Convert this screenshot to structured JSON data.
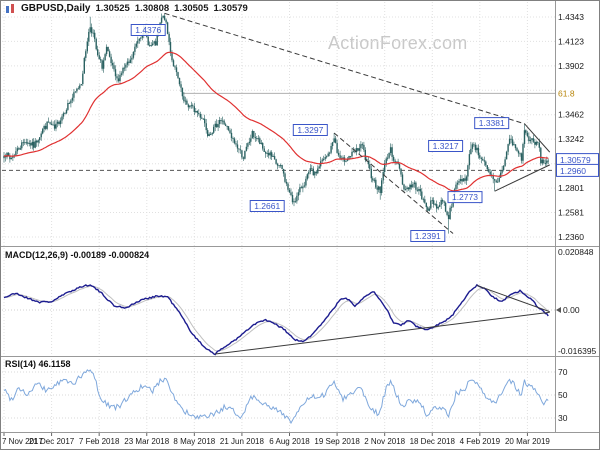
{
  "header": {
    "symbol": "GBPUSD,Daily",
    "open": "1.30525",
    "high": "1.30808",
    "low": "1.30505",
    "close": "1.30579"
  },
  "watermark": "ActionForex.com",
  "indicators": {
    "macd_label": "MACD(12,26,9) -0.00189 -0.000824",
    "rsi_label": "RSI(14) 46.1158"
  },
  "colors": {
    "candle": "#2a6161",
    "ma": "#e03131",
    "macd": "#1c1c8f",
    "macd_signal": "#c0c0c0",
    "rsi": "#7fa8dc",
    "annotation": "#3a55c8",
    "fib_gold": "#b8860b",
    "grid": "#e0e0e0",
    "axis_text": "#1a1a1a",
    "dashed_level": "#555555",
    "trendline": "#3a3a3a",
    "separator": "#999999",
    "border": "#808080"
  },
  "chart_data": [
    {
      "type": "candlestick",
      "title": "GBPUSD Daily",
      "x_unit": "trading_day_index",
      "ylim": [
        1.228,
        1.448
      ],
      "x_ticks": [
        {
          "td": 0,
          "label": "7 Nov 2017"
        },
        {
          "td": 32,
          "label": "21 Dec 2017"
        },
        {
          "td": 64,
          "label": "7 Feb 2018"
        },
        {
          "td": 96,
          "label": "23 Mar 2018"
        },
        {
          "td": 128,
          "label": "8 May 2018"
        },
        {
          "td": 160,
          "label": "21 Jun 2018"
        },
        {
          "td": 192,
          "label": "6 Aug 2018"
        },
        {
          "td": 224,
          "label": "19 Sep 2018"
        },
        {
          "td": 256,
          "label": "2 Nov 2018"
        },
        {
          "td": 288,
          "label": "18 Dec 2018"
        },
        {
          "td": 320,
          "label": "4 Feb 2019"
        },
        {
          "td": 352,
          "label": "20 Mar 2019"
        }
      ],
      "y_ticks": [
        {
          "price": 1.4343,
          "label": "1.4343"
        },
        {
          "price": 1.4123,
          "label": "1.4123"
        },
        {
          "price": 1.3902,
          "label": "1.3902"
        },
        {
          "price": 1.3682,
          "label": ""
        },
        {
          "price": 1.3462,
          "label": "1.3462"
        },
        {
          "price": 1.3242,
          "label": "1.3242"
        },
        {
          "price": 1.3021,
          "label": ""
        },
        {
          "price": 1.2801,
          "label": "1.2801"
        },
        {
          "price": 1.2581,
          "label": "1.2581"
        },
        {
          "price": 1.236,
          "label": "1.2360"
        }
      ],
      "price_path": [
        [
          0,
          1.312
        ],
        [
          4,
          1.306
        ],
        [
          8,
          1.313
        ],
        [
          14,
          1.323
        ],
        [
          20,
          1.318
        ],
        [
          26,
          1.333
        ],
        [
          30,
          1.339
        ],
        [
          34,
          1.333
        ],
        [
          38,
          1.343
        ],
        [
          42,
          1.353
        ],
        [
          48,
          1.366
        ],
        [
          52,
          1.376
        ],
        [
          56,
          1.414
        ],
        [
          58,
          1.426
        ],
        [
          60,
          1.419
        ],
        [
          63,
          1.398
        ],
        [
          66,
          1.39
        ],
        [
          69,
          1.405
        ],
        [
          73,
          1.388
        ],
        [
          76,
          1.377
        ],
        [
          80,
          1.387
        ],
        [
          85,
          1.394
        ],
        [
          90,
          1.414
        ],
        [
          94,
          1.423
        ],
        [
          98,
          1.408
        ],
        [
          102,
          1.41
        ],
        [
          106,
          1.433
        ],
        [
          108,
          1.434
        ],
        [
          110,
          1.419
        ],
        [
          113,
          1.396
        ],
        [
          117,
          1.378
        ],
        [
          121,
          1.357
        ],
        [
          126,
          1.353
        ],
        [
          130,
          1.348
        ],
        [
          134,
          1.343
        ],
        [
          137,
          1.33
        ],
        [
          141,
          1.333
        ],
        [
          145,
          1.342
        ],
        [
          149,
          1.337
        ],
        [
          153,
          1.325
        ],
        [
          157,
          1.317
        ],
        [
          161,
          1.308
        ],
        [
          164,
          1.319
        ],
        [
          167,
          1.329
        ],
        [
          171,
          1.323
        ],
        [
          175,
          1.313
        ],
        [
          179,
          1.31
        ],
        [
          183,
          1.302
        ],
        [
          187,
          1.297
        ],
        [
          190,
          1.283
        ],
        [
          194,
          1.268
        ],
        [
          197,
          1.272
        ],
        [
          200,
          1.281
        ],
        [
          203,
          1.287
        ],
        [
          206,
          1.296
        ],
        [
          209,
          1.292
        ],
        [
          213,
          1.303
        ],
        [
          217,
          1.308
        ],
        [
          220,
          1.316
        ],
        [
          222,
          1.327
        ],
        [
          224,
          1.312
        ],
        [
          227,
          1.304
        ],
        [
          231,
          1.308
        ],
        [
          235,
          1.311
        ],
        [
          238,
          1.315
        ],
        [
          241,
          1.318
        ],
        [
          244,
          1.302
        ],
        [
          247,
          1.292
        ],
        [
          250,
          1.283
        ],
        [
          253,
          1.277
        ],
        [
          255,
          1.296
        ],
        [
          258,
          1.31
        ],
        [
          260,
          1.314
        ],
        [
          263,
          1.304
        ],
        [
          266,
          1.299
        ],
        [
          269,
          1.279
        ],
        [
          272,
          1.281
        ],
        [
          276,
          1.283
        ],
        [
          279,
          1.278
        ],
        [
          282,
          1.268
        ],
        [
          285,
          1.262
        ],
        [
          288,
          1.268
        ],
        [
          292,
          1.263
        ],
        [
          295,
          1.27
        ],
        [
          297,
          1.261
        ],
        [
          299,
          1.254
        ],
        [
          302,
          1.272
        ],
        [
          305,
          1.285
        ],
        [
          308,
          1.288
        ],
        [
          311,
          1.29
        ],
        [
          314,
          1.318
        ],
        [
          316,
          1.32
        ],
        [
          319,
          1.311
        ],
        [
          322,
          1.306
        ],
        [
          325,
          1.295
        ],
        [
          328,
          1.289
        ],
        [
          331,
          1.284
        ],
        [
          334,
          1.293
        ],
        [
          337,
          1.306
        ],
        [
          340,
          1.325
        ],
        [
          343,
          1.318
        ],
        [
          346,
          1.312
        ],
        [
          348,
          1.307
        ],
        [
          350,
          1.332
        ],
        [
          352,
          1.326
        ],
        [
          354,
          1.324
        ],
        [
          357,
          1.319
        ],
        [
          359,
          1.322
        ],
        [
          361,
          1.305
        ],
        [
          363,
          1.303
        ],
        [
          366,
          1.3058
        ]
      ],
      "key_highs": [
        [
          58,
          1.4345
        ],
        [
          108,
          1.4376
        ],
        [
          222,
          1.3297
        ],
        [
          314,
          1.3217
        ],
        [
          350,
          1.3381
        ]
      ],
      "key_lows": [
        [
          194,
          1.2661
        ],
        [
          253,
          1.2696
        ],
        [
          299,
          1.2391
        ],
        [
          330,
          1.2773
        ]
      ],
      "annotations": [
        {
          "text": "1.4376",
          "td": 97,
          "price": 1.4226
        },
        {
          "text": "1.3297",
          "td": 206,
          "price": 1.3324
        },
        {
          "text": "1.3217",
          "td": 297,
          "price": 1.318
        },
        {
          "text": "1.3381",
          "td": 328,
          "price": 1.3387
        },
        {
          "text": "1.2661",
          "td": 177,
          "price": 1.2639
        },
        {
          "text": "1.2773",
          "td": 310,
          "price": 1.272
        },
        {
          "text": "1.2391",
          "td": 285,
          "price": 1.2369
        }
      ],
      "axis_tags": [
        {
          "text": "1.30579",
          "price": 1.30579,
          "line": "none"
        },
        {
          "text": "1.2960",
          "price": 1.296,
          "line": "dashed"
        }
      ],
      "fib_level": {
        "text": "61.8",
        "price": 1.3655,
        "from_td": 120
      },
      "trendlines": [
        {
          "from": [
            108,
            1.4376
          ],
          "to": [
            350,
            1.3381
          ],
          "style": "dashed"
        },
        {
          "from": [
            222,
            1.3297
          ],
          "to": [
            302,
            1.2391
          ],
          "style": "dashed"
        },
        {
          "from": [
            350,
            1.3381
          ],
          "to": [
            367,
            1.3125
          ],
          "style": "solid"
        },
        {
          "from": [
            330,
            1.2773
          ],
          "to": [
            367,
            1.301
          ],
          "style": "solid"
        }
      ],
      "ma_period": 55
    },
    {
      "type": "line",
      "name": "MACD(12,26,9)",
      "value": -0.00189,
      "signal_value": -0.000824,
      "ylim": [
        -0.0165,
        0.0226
      ],
      "y_ticks": [
        {
          "v": 0.020848,
          "label": "0.020848"
        },
        {
          "v": 0,
          "label": "0.00"
        },
        {
          "v": -0.016395,
          "label": "-0.016395"
        }
      ],
      "path": [
        [
          0,
          0.0045
        ],
        [
          8,
          0.006
        ],
        [
          16,
          0.0042
        ],
        [
          24,
          0.0028
        ],
        [
          32,
          0.003
        ],
        [
          40,
          0.0055
        ],
        [
          50,
          0.008
        ],
        [
          58,
          0.0092
        ],
        [
          66,
          0.0058
        ],
        [
          74,
          0.0015
        ],
        [
          82,
          0.0008
        ],
        [
          92,
          0.0035
        ],
        [
          102,
          0.005
        ],
        [
          110,
          0.0048
        ],
        [
          118,
          -0.001
        ],
        [
          126,
          -0.008
        ],
        [
          134,
          -0.013
        ],
        [
          142,
          -0.0158
        ],
        [
          150,
          -0.0126
        ],
        [
          158,
          -0.0098
        ],
        [
          164,
          -0.007
        ],
        [
          170,
          -0.0046
        ],
        [
          176,
          -0.0036
        ],
        [
          182,
          -0.005
        ],
        [
          188,
          -0.0068
        ],
        [
          195,
          -0.0105
        ],
        [
          201,
          -0.0115
        ],
        [
          208,
          -0.0085
        ],
        [
          214,
          -0.0046
        ],
        [
          220,
          -0.0006
        ],
        [
          226,
          0.0036
        ],
        [
          230,
          0.0044
        ],
        [
          236,
          0.0016
        ],
        [
          242,
          0.0046
        ],
        [
          248,
          0.0068
        ],
        [
          252,
          0.0042
        ],
        [
          257,
          0.0006
        ],
        [
          262,
          -0.0046
        ],
        [
          267,
          -0.0054
        ],
        [
          272,
          -0.0038
        ],
        [
          278,
          -0.006
        ],
        [
          284,
          -0.0072
        ],
        [
          290,
          -0.0056
        ],
        [
          296,
          -0.0042
        ],
        [
          302,
          -0.0016
        ],
        [
          308,
          0.003
        ],
        [
          314,
          0.0072
        ],
        [
          318,
          0.0088
        ],
        [
          323,
          0.0078
        ],
        [
          329,
          0.0046
        ],
        [
          335,
          0.003
        ],
        [
          341,
          0.0058
        ],
        [
          347,
          0.0068
        ],
        [
          351,
          0.0054
        ],
        [
          356,
          0.003
        ],
        [
          360,
          0.0006
        ],
        [
          366,
          -0.0019
        ]
      ],
      "trendlines": [
        {
          "from": [
            142,
            -0.0158
          ],
          "to": [
            367,
            -0.0008
          ],
          "style": "solid"
        },
        {
          "from": [
            318,
            0.0088
          ],
          "to": [
            367,
            -0.0006
          ],
          "style": "solid"
        }
      ]
    },
    {
      "type": "line",
      "name": "RSI(14)",
      "value": 46.1158,
      "ylim": [
        15,
        85
      ],
      "levels": [
        70,
        50,
        30
      ],
      "path": [
        [
          0,
          55
        ],
        [
          5,
          46
        ],
        [
          10,
          57
        ],
        [
          16,
          50
        ],
        [
          22,
          60
        ],
        [
          28,
          54
        ],
        [
          34,
          58
        ],
        [
          40,
          63
        ],
        [
          46,
          60
        ],
        [
          52,
          66
        ],
        [
          57,
          72
        ],
        [
          61,
          66
        ],
        [
          65,
          46
        ],
        [
          71,
          41
        ],
        [
          77,
          39
        ],
        [
          84,
          49
        ],
        [
          92,
          57
        ],
        [
          100,
          54
        ],
        [
          106,
          63
        ],
        [
          109,
          65
        ],
        [
          113,
          52
        ],
        [
          118,
          40
        ],
        [
          126,
          31
        ],
        [
          134,
          30
        ],
        [
          142,
          34
        ],
        [
          148,
          39
        ],
        [
          154,
          36
        ],
        [
          160,
          31
        ],
        [
          166,
          49
        ],
        [
          172,
          46
        ],
        [
          178,
          39
        ],
        [
          186,
          36
        ],
        [
          193,
          27
        ],
        [
          200,
          39
        ],
        [
          206,
          49
        ],
        [
          212,
          46
        ],
        [
          218,
          55
        ],
        [
          222,
          62
        ],
        [
          228,
          47
        ],
        [
          234,
          52
        ],
        [
          240,
          57
        ],
        [
          246,
          40
        ],
        [
          252,
          33
        ],
        [
          257,
          56
        ],
        [
          260,
          61
        ],
        [
          264,
          50
        ],
        [
          268,
          40
        ],
        [
          274,
          46
        ],
        [
          280,
          43
        ],
        [
          285,
          31
        ],
        [
          290,
          39
        ],
        [
          296,
          37
        ],
        [
          299,
          33
        ],
        [
          304,
          51
        ],
        [
          310,
          55
        ],
        [
          314,
          64
        ],
        [
          318,
          59
        ],
        [
          324,
          48
        ],
        [
          330,
          42
        ],
        [
          336,
          56
        ],
        [
          340,
          64
        ],
        [
          344,
          57
        ],
        [
          348,
          50
        ],
        [
          350,
          62
        ],
        [
          354,
          57
        ],
        [
          358,
          53
        ],
        [
          362,
          43
        ],
        [
          366,
          46
        ]
      ]
    }
  ]
}
